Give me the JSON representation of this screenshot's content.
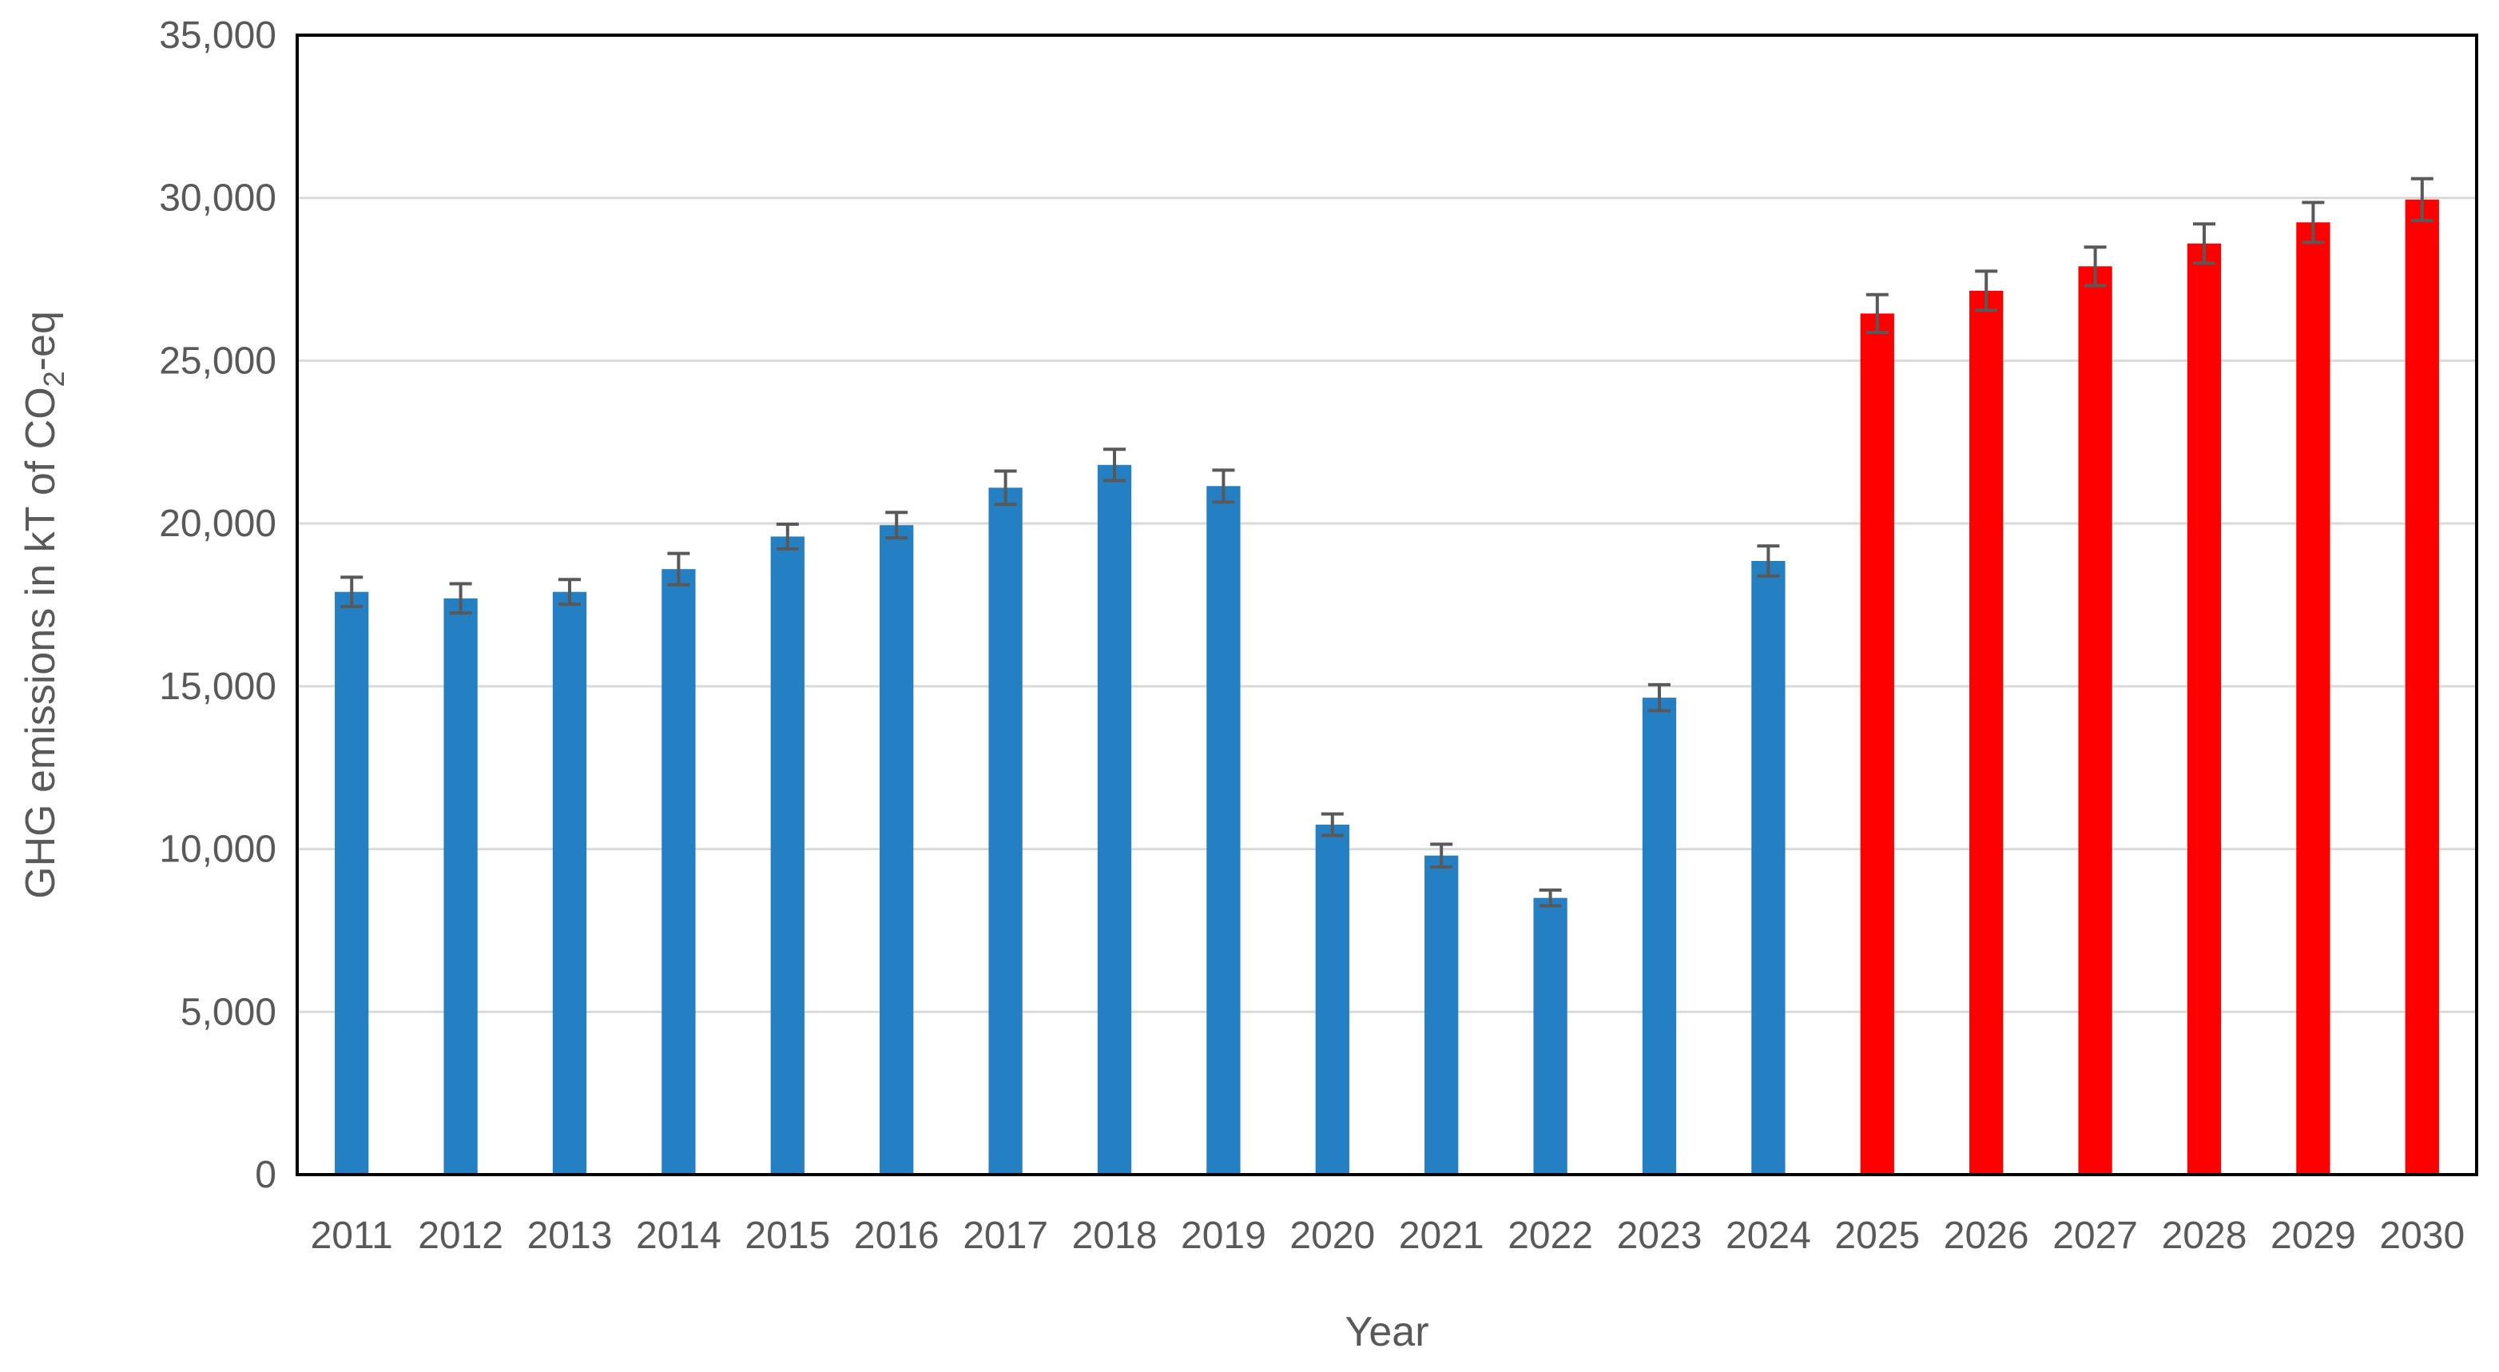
{
  "chart_data": {
    "type": "bar",
    "title": "",
    "xlabel": "Year",
    "ylabel": {
      "prefix": "GHG emissions in kT of CO",
      "subscript": "2",
      "suffix": "-eq"
    },
    "ylim": [
      0,
      35000
    ],
    "yticks": [
      "0",
      "5,000",
      "10,000",
      "15,000",
      "20,000",
      "25,000",
      "30,000",
      "35,000"
    ],
    "ytick_values": [
      0,
      5000,
      10000,
      15000,
      20000,
      25000,
      30000,
      35000
    ],
    "grid": true,
    "legend": false,
    "categories": [
      "2011",
      "2012",
      "2013",
      "2014",
      "2015",
      "2016",
      "2017",
      "2018",
      "2019",
      "2020",
      "2021",
      "2022",
      "2023",
      "2024",
      "2025",
      "2026",
      "2027",
      "2028",
      "2029",
      "2030"
    ],
    "values": [
      17900,
      17700,
      17900,
      18600,
      19600,
      19950,
      21100,
      21800,
      21150,
      10750,
      9800,
      8500,
      14650,
      18850,
      26450,
      27150,
      27900,
      28600,
      29250,
      29950
    ],
    "errors": [
      450,
      450,
      380,
      480,
      380,
      390,
      510,
      480,
      490,
      330,
      350,
      240,
      400,
      460,
      580,
      600,
      590,
      600,
      610,
      640
    ],
    "colors": {
      "historical": "#2580C3",
      "projected": "#FF0000",
      "error_bar": "#595959",
      "grid": "#D9D9D9",
      "axis": "#000000"
    },
    "projected_from_index": 14
  }
}
